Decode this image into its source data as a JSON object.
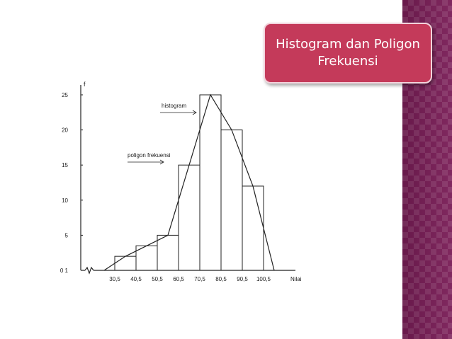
{
  "slide": {
    "title": "Histogram dan Poligon Frekuensi",
    "accent_color": "#c43a5a",
    "side_strip_color": "#7a1d57"
  },
  "chart_data": {
    "type": "bar",
    "title": "",
    "xlabel": "Nilai",
    "ylabel": "f",
    "ylim": [
      0,
      25
    ],
    "yticks": [
      0,
      5,
      10,
      15,
      20,
      25
    ],
    "ytick_labels": [
      "0 1",
      "5",
      "10",
      "15",
      "20",
      "25"
    ],
    "bin_edges": [
      30.5,
      40.5,
      50.5,
      60.5,
      70.5,
      80.5,
      90.5,
      100.5
    ],
    "xtick_labels": [
      "30,5",
      "40,5",
      "50,5",
      "60,5",
      "70,5",
      "80,5",
      "90,5",
      "100,5"
    ],
    "values": [
      2,
      3.5,
      5,
      15,
      25,
      20,
      12
    ],
    "series": [
      {
        "type": "bar",
        "values": [
          2,
          3.5,
          5,
          15,
          25,
          20,
          12
        ]
      },
      {
        "type": "line",
        "x": [
          25.5,
          35.5,
          45.5,
          55.5,
          65.5,
          75.5,
          85.5,
          95.5,
          105.5
        ],
        "y": [
          0,
          2,
          3.5,
          5,
          15,
          25,
          20,
          12,
          0
        ]
      }
    ],
    "annotations": [
      {
        "text": "histogram"
      },
      {
        "text": "poligon frekuensi"
      }
    ],
    "grid": false
  }
}
